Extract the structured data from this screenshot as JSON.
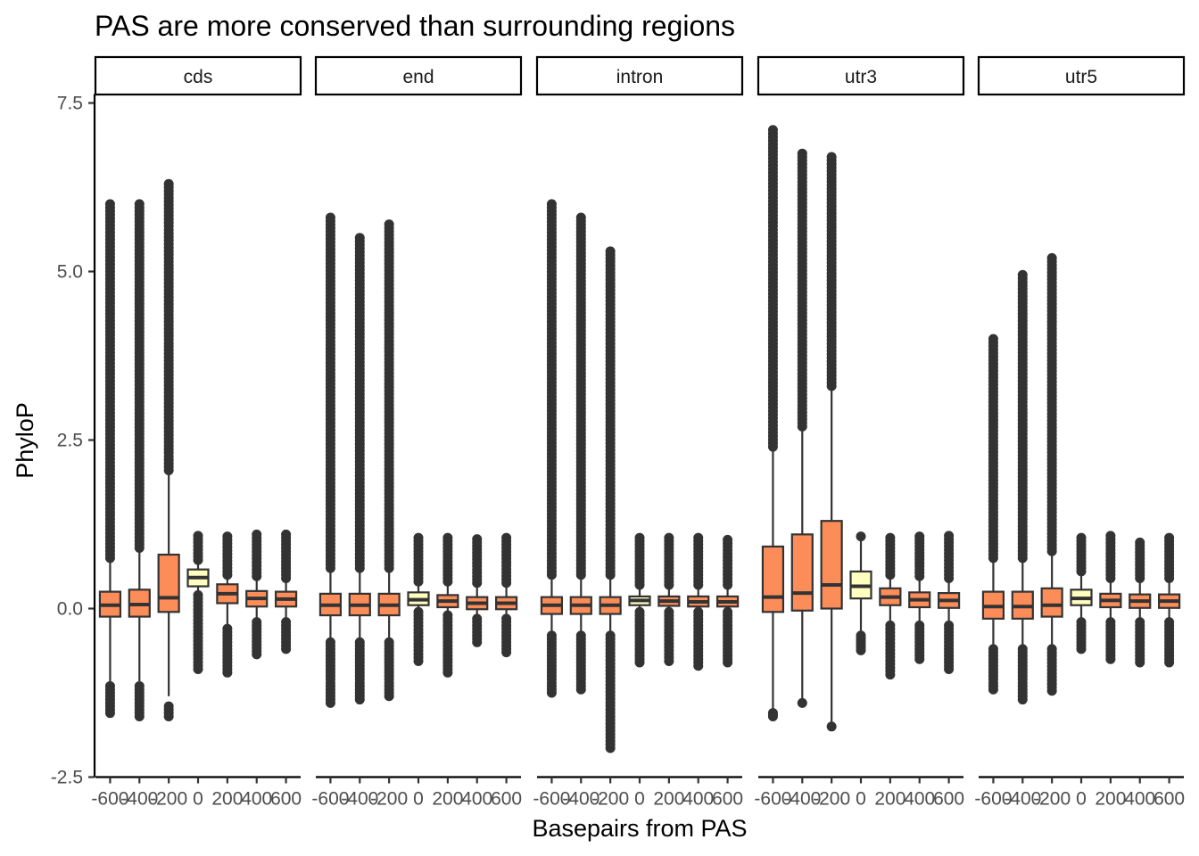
{
  "chart_data": {
    "type": "boxplot",
    "title": "PAS are more conserved than surrounding regions",
    "xlabel": "Basepairs from PAS",
    "ylabel": "PhyloP",
    "ylim": [
      -2.5,
      7.5
    ],
    "yticks": [
      -2.5,
      0.0,
      2.5,
      5.0,
      7.5
    ],
    "ytick_labels": [
      "-2.5",
      "0.0",
      "2.5",
      "5.0",
      "7.5"
    ],
    "categories": [
      "-600",
      "-400",
      "-200",
      "0",
      "200",
      "400",
      "600"
    ],
    "legend": "none",
    "grid": false,
    "colors": {
      "flank": "#FC8D59",
      "pas": "#FFFFBF",
      "ink": "#333333"
    },
    "panels": [
      {
        "name": "cds",
        "boxes": [
          {
            "x": "-600",
            "low": -1.15,
            "q1": -0.12,
            "median": 0.05,
            "q3": 0.25,
            "high": 0.75,
            "out_low": [
              -1.55,
              -1.15
            ],
            "out_high": [
              0.75,
              6.0
            ]
          },
          {
            "x": "-400",
            "low": -1.15,
            "q1": -0.12,
            "median": 0.06,
            "q3": 0.28,
            "high": 0.9,
            "out_low": [
              -1.6,
              -1.15
            ],
            "out_high": [
              0.9,
              6.0
            ]
          },
          {
            "x": "-200",
            "low": -1.3,
            "q1": -0.05,
            "median": 0.16,
            "q3": 0.8,
            "high": 2.05,
            "out_low": [
              -1.6,
              -1.45
            ],
            "out_high": [
              2.05,
              6.3
            ]
          },
          {
            "x": "0",
            "low": 0.2,
            "q1": 0.33,
            "median": 0.46,
            "q3": 0.58,
            "high": 0.72,
            "out_low": [
              -0.9,
              0.2
            ],
            "out_high": [
              0.72,
              1.08
            ]
          },
          {
            "x": "200",
            "low": -0.3,
            "q1": 0.08,
            "median": 0.22,
            "q3": 0.36,
            "high": 0.5,
            "out_low": [
              -0.95,
              -0.3
            ],
            "out_high": [
              0.5,
              1.07
            ]
          },
          {
            "x": "400",
            "low": -0.2,
            "q1": 0.03,
            "median": 0.15,
            "q3": 0.26,
            "high": 0.48,
            "out_low": [
              -0.68,
              -0.2
            ],
            "out_high": [
              0.48,
              1.1
            ]
          },
          {
            "x": "600",
            "low": -0.2,
            "q1": 0.03,
            "median": 0.14,
            "q3": 0.25,
            "high": 0.45,
            "out_low": [
              -0.6,
              -0.2
            ],
            "out_high": [
              0.45,
              1.1
            ]
          }
        ]
      },
      {
        "name": "end",
        "boxes": [
          {
            "x": "-600",
            "low": -0.5,
            "q1": -0.1,
            "median": 0.05,
            "q3": 0.22,
            "high": 0.6,
            "out_low": [
              -1.4,
              -0.5
            ],
            "out_high": [
              0.6,
              5.8
            ]
          },
          {
            "x": "-400",
            "low": -0.5,
            "q1": -0.1,
            "median": 0.05,
            "q3": 0.22,
            "high": 0.6,
            "out_low": [
              -1.35,
              -0.5
            ],
            "out_high": [
              0.6,
              5.5
            ]
          },
          {
            "x": "-200",
            "low": -0.5,
            "q1": -0.1,
            "median": 0.05,
            "q3": 0.22,
            "high": 0.6,
            "out_low": [
              -1.3,
              -0.5
            ],
            "out_high": [
              0.6,
              5.7
            ]
          },
          {
            "x": "0",
            "low": -0.05,
            "q1": 0.05,
            "median": 0.13,
            "q3": 0.24,
            "high": 0.4,
            "out_low": [
              -0.78,
              -0.05
            ],
            "out_high": [
              0.4,
              1.05
            ]
          },
          {
            "x": "200",
            "low": -0.1,
            "q1": 0.02,
            "median": 0.11,
            "q3": 0.2,
            "high": 0.4,
            "out_low": [
              -0.95,
              -0.1
            ],
            "out_high": [
              0.4,
              1.05
            ]
          },
          {
            "x": "400",
            "low": -0.15,
            "q1": -0.01,
            "median": 0.08,
            "q3": 0.17,
            "high": 0.38,
            "out_low": [
              -0.5,
              -0.15
            ],
            "out_high": [
              0.38,
              1.03
            ]
          },
          {
            "x": "600",
            "low": -0.15,
            "q1": -0.01,
            "median": 0.08,
            "q3": 0.17,
            "high": 0.38,
            "out_low": [
              -0.65,
              -0.15
            ],
            "out_high": [
              0.38,
              1.05
            ]
          }
        ]
      },
      {
        "name": "intron",
        "boxes": [
          {
            "x": "-600",
            "low": -0.4,
            "q1": -0.08,
            "median": 0.05,
            "q3": 0.17,
            "high": 0.5,
            "out_low": [
              -1.25,
              -0.4
            ],
            "out_high": [
              0.5,
              6.0
            ]
          },
          {
            "x": "-400",
            "low": -0.4,
            "q1": -0.08,
            "median": 0.05,
            "q3": 0.17,
            "high": 0.5,
            "out_low": [
              -1.2,
              -0.4
            ],
            "out_high": [
              0.5,
              5.8
            ]
          },
          {
            "x": "-200",
            "low": -0.4,
            "q1": -0.08,
            "median": 0.05,
            "q3": 0.17,
            "high": 0.5,
            "out_low": [
              -2.07,
              -0.4
            ],
            "out_high": [
              0.5,
              5.3
            ]
          },
          {
            "x": "0",
            "low": -0.05,
            "q1": 0.05,
            "median": 0.12,
            "q3": 0.18,
            "high": 0.35,
            "out_low": [
              -0.8,
              -0.05
            ],
            "out_high": [
              0.35,
              1.05
            ]
          },
          {
            "x": "200",
            "low": -0.05,
            "q1": 0.04,
            "median": 0.11,
            "q3": 0.18,
            "high": 0.35,
            "out_low": [
              -0.78,
              -0.05
            ],
            "out_high": [
              0.35,
              1.05
            ]
          },
          {
            "x": "400",
            "low": -0.05,
            "q1": 0.03,
            "median": 0.1,
            "q3": 0.18,
            "high": 0.35,
            "out_low": [
              -0.85,
              -0.05
            ],
            "out_high": [
              0.35,
              1.05
            ]
          },
          {
            "x": "600",
            "low": -0.05,
            "q1": 0.03,
            "median": 0.1,
            "q3": 0.18,
            "high": 0.35,
            "out_low": [
              -0.8,
              -0.05
            ],
            "out_high": [
              0.35,
              1.02
            ]
          }
        ]
      },
      {
        "name": "utr3",
        "boxes": [
          {
            "x": "-600",
            "low": -1.55,
            "q1": -0.05,
            "median": 0.17,
            "q3": 0.92,
            "high": 2.4,
            "out_low": [
              -1.6,
              -1.55
            ],
            "out_high": [
              2.4,
              7.1
            ]
          },
          {
            "x": "-400",
            "low": -1.4,
            "q1": -0.03,
            "median": 0.23,
            "q3": 1.1,
            "high": 2.7,
            "out_low": [
              -1.4,
              -1.4
            ],
            "out_high": [
              2.7,
              6.75
            ]
          },
          {
            "x": "-200",
            "low": -1.75,
            "q1": 0.0,
            "median": 0.35,
            "q3": 1.3,
            "high": 3.3,
            "out_low": [
              -1.75,
              -1.75
            ],
            "out_high": [
              3.3,
              6.7
            ]
          },
          {
            "x": "0",
            "low": -0.4,
            "q1": 0.15,
            "median": 0.33,
            "q3": 0.55,
            "high": 1.07,
            "out_low": [
              -0.62,
              -0.4
            ],
            "out_high": [
              1.07,
              1.07
            ]
          },
          {
            "x": "200",
            "low": -0.25,
            "q1": 0.05,
            "median": 0.17,
            "q3": 0.3,
            "high": 0.5,
            "out_low": [
              -0.98,
              -0.25
            ],
            "out_high": [
              0.5,
              1.05
            ]
          },
          {
            "x": "400",
            "low": -0.25,
            "q1": 0.02,
            "median": 0.13,
            "q3": 0.24,
            "high": 0.48,
            "out_low": [
              -0.75,
              -0.25
            ],
            "out_high": [
              0.48,
              1.07
            ]
          },
          {
            "x": "600",
            "low": -0.25,
            "q1": 0.01,
            "median": 0.12,
            "q3": 0.23,
            "high": 0.45,
            "out_low": [
              -0.9,
              -0.25
            ],
            "out_high": [
              0.45,
              1.08
            ]
          }
        ]
      },
      {
        "name": "utr5",
        "boxes": [
          {
            "x": "-600",
            "low": -0.6,
            "q1": -0.15,
            "median": 0.03,
            "q3": 0.25,
            "high": 0.75,
            "out_low": [
              -1.2,
              -0.6
            ],
            "out_high": [
              0.75,
              4.0
            ]
          },
          {
            "x": "-400",
            "low": -0.6,
            "q1": -0.15,
            "median": 0.03,
            "q3": 0.25,
            "high": 0.75,
            "out_low": [
              -1.35,
              -0.6
            ],
            "out_high": [
              0.75,
              4.95
            ]
          },
          {
            "x": "-200",
            "low": -0.6,
            "q1": -0.12,
            "median": 0.05,
            "q3": 0.3,
            "high": 0.85,
            "out_low": [
              -1.22,
              -0.6
            ],
            "out_high": [
              0.85,
              5.2
            ]
          },
          {
            "x": "0",
            "low": -0.2,
            "q1": 0.05,
            "median": 0.15,
            "q3": 0.28,
            "high": 0.55,
            "out_low": [
              -0.6,
              -0.2
            ],
            "out_high": [
              0.55,
              1.05
            ]
          },
          {
            "x": "200",
            "low": -0.2,
            "q1": 0.02,
            "median": 0.12,
            "q3": 0.22,
            "high": 0.45,
            "out_low": [
              -0.75,
              -0.2
            ],
            "out_high": [
              0.45,
              1.08
            ]
          },
          {
            "x": "400",
            "low": -0.2,
            "q1": 0.01,
            "median": 0.11,
            "q3": 0.21,
            "high": 0.45,
            "out_low": [
              -0.8,
              -0.2
            ],
            "out_high": [
              0.45,
              0.98
            ]
          },
          {
            "x": "600",
            "low": -0.2,
            "q1": 0.01,
            "median": 0.11,
            "q3": 0.21,
            "high": 0.45,
            "out_low": [
              -0.8,
              -0.2
            ],
            "out_high": [
              0.45,
              1.05
            ]
          }
        ]
      }
    ]
  }
}
